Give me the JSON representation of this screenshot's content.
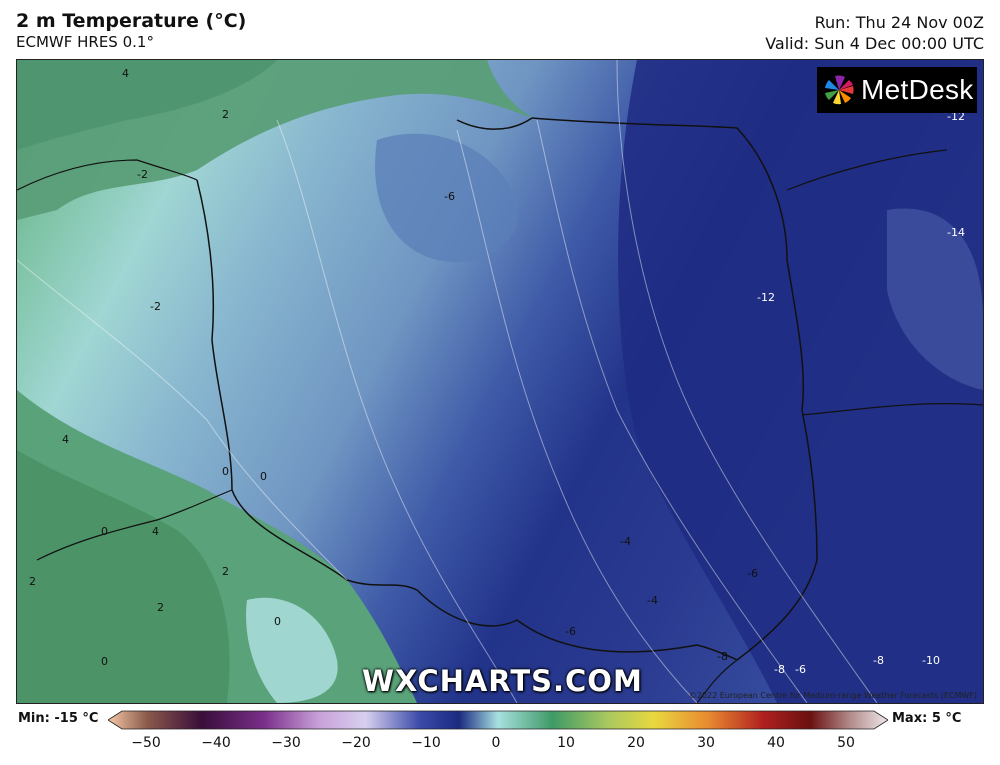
{
  "header": {
    "title": "2 m Temperature (°C)",
    "subtitle": "ECMWF HRES 0.1°",
    "run": "Run: Thu 24 Nov 00Z",
    "valid": "Valid: Sun 4 Dec 00:00 UTC"
  },
  "brand": {
    "logo_text": "MetDesk",
    "watermark": "WXCHARTS.COM",
    "copyright": "©2022 European Centre for Medium-range Weather Forecasts (ECMWF)"
  },
  "map_labels": [
    "4",
    "2",
    "-2",
    "-2",
    "-6",
    "-12",
    "-14",
    "-12",
    "4",
    "0",
    "0",
    "0",
    "4",
    "2",
    "2",
    "2",
    "0",
    "0",
    "-4",
    "-4",
    "-6",
    "-6",
    "-8",
    "-8",
    "-6",
    "-8",
    "-10"
  ],
  "colorbar": {
    "min_label": "Min: -15 °C",
    "max_label": "Max: 5 °C",
    "ticks": [
      "−50",
      "−40",
      "−30",
      "−20",
      "−10",
      "0",
      "10",
      "20",
      "30",
      "40",
      "50"
    ]
  },
  "colors": {
    "cold_dark": "#1b2a80",
    "cold_mid": "#4a6cb0",
    "cool": "#7fa6c9",
    "zero": "#a8d8d6",
    "warm": "#4f9a6d"
  }
}
